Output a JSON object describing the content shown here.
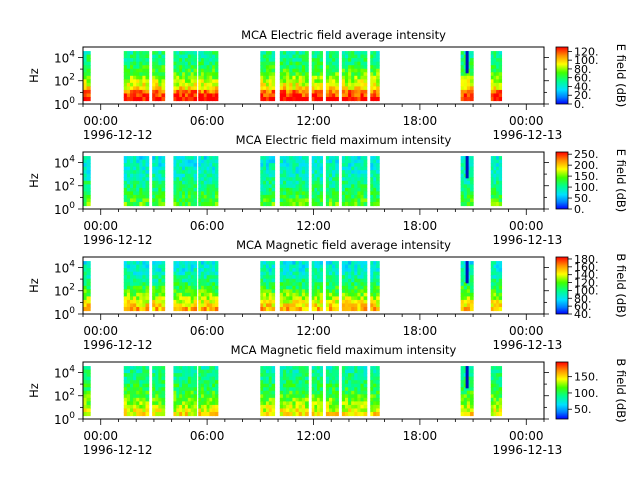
{
  "chart_data": [
    {
      "type": "heatmap",
      "title": "MCA  Electric field average intensity",
      "ylabel": "Hz",
      "yscale": "log",
      "yticks": [
        "10^0",
        "10^2",
        "10^4"
      ],
      "xticks": [
        "00:00",
        "06:00",
        "12:00",
        "18:00",
        "00:00"
      ],
      "date_start": "1996-12-12",
      "date_end": "1996-12-13",
      "colorbar": {
        "label": "E field (dB)",
        "ticks": [
          "0.",
          "20.",
          "40.",
          "60.",
          "80.",
          "100.",
          "120."
        ],
        "range": [
          0,
          130
        ]
      },
      "data_intervals_hours": [
        [
          0.0,
          0.4
        ],
        [
          2.3,
          3.7
        ],
        [
          3.9,
          4.6
        ],
        [
          5.1,
          6.4
        ],
        [
          6.5,
          7.6
        ],
        [
          10.0,
          10.8
        ],
        [
          11.1,
          12.7
        ],
        [
          12.9,
          13.5
        ],
        [
          13.7,
          14.4
        ],
        [
          14.6,
          16.0
        ],
        [
          16.2,
          16.7
        ],
        [
          21.3,
          22.0
        ],
        [
          23.0,
          23.6
        ]
      ],
      "colormap": "rainbow"
    },
    {
      "type": "heatmap",
      "title": "MCA  Electric field maximum intensity",
      "ylabel": "Hz",
      "yscale": "log",
      "yticks": [
        "10^0",
        "10^2",
        "10^4"
      ],
      "xticks": [
        "00:00",
        "06:00",
        "12:00",
        "18:00",
        "00:00"
      ],
      "date_start": "1996-12-12",
      "date_end": "1996-12-13",
      "colorbar": {
        "label": "E field (dB)",
        "ticks": [
          "0.",
          "50.",
          "100.",
          "150.",
          "200.",
          "250."
        ],
        "range": [
          0,
          260
        ]
      },
      "data_intervals_hours": [
        [
          0.0,
          0.4
        ],
        [
          2.3,
          3.7
        ],
        [
          3.9,
          4.6
        ],
        [
          5.1,
          6.4
        ],
        [
          6.5,
          7.6
        ],
        [
          10.0,
          10.8
        ],
        [
          11.1,
          12.7
        ],
        [
          12.9,
          13.5
        ],
        [
          13.7,
          14.4
        ],
        [
          14.6,
          16.0
        ],
        [
          16.2,
          16.7
        ],
        [
          21.3,
          22.0
        ],
        [
          23.0,
          23.6
        ]
      ],
      "colormap": "rainbow"
    },
    {
      "type": "heatmap",
      "title": "MCA  Magnetic field average intensity",
      "ylabel": "Hz",
      "yscale": "log",
      "yticks": [
        "10^0",
        "10^2",
        "10^4"
      ],
      "xticks": [
        "00:00",
        "06:00",
        "12:00",
        "18:00",
        "00:00"
      ],
      "date_start": "1996-12-12",
      "date_end": "1996-12-13",
      "colorbar": {
        "label": "B field (dB)",
        "ticks": [
          "40.",
          "60.",
          "80.",
          "100.",
          "120.",
          "140.",
          "160.",
          "180."
        ],
        "range": [
          40,
          185
        ]
      },
      "data_intervals_hours": [
        [
          0.0,
          0.4
        ],
        [
          2.3,
          3.7
        ],
        [
          3.9,
          4.6
        ],
        [
          5.1,
          6.4
        ],
        [
          6.5,
          7.6
        ],
        [
          10.0,
          10.8
        ],
        [
          11.1,
          12.7
        ],
        [
          12.9,
          13.5
        ],
        [
          13.7,
          14.4
        ],
        [
          14.6,
          16.0
        ],
        [
          16.2,
          16.7
        ],
        [
          21.3,
          22.0
        ],
        [
          23.0,
          23.6
        ]
      ],
      "colormap": "rainbow"
    },
    {
      "type": "heatmap",
      "title": "MCA  Magnetic field maximum intensity",
      "ylabel": "Hz",
      "yscale": "log",
      "yticks": [
        "10^0",
        "10^2",
        "10^4"
      ],
      "xticks": [
        "00:00",
        "06:00",
        "12:00",
        "18:00",
        "00:00"
      ],
      "date_start": "1996-12-12",
      "date_end": "1996-12-13",
      "colorbar": {
        "label": "B field (dB)",
        "ticks": [
          "50.",
          "100.",
          "150."
        ],
        "range": [
          20,
          195
        ]
      },
      "data_intervals_hours": [
        [
          0.0,
          0.4
        ],
        [
          2.3,
          3.7
        ],
        [
          3.9,
          4.6
        ],
        [
          5.1,
          6.4
        ],
        [
          6.5,
          7.6
        ],
        [
          10.0,
          10.8
        ],
        [
          11.1,
          12.7
        ],
        [
          12.9,
          13.5
        ],
        [
          13.7,
          14.4
        ],
        [
          14.6,
          16.0
        ],
        [
          16.2,
          16.7
        ],
        [
          21.3,
          22.0
        ],
        [
          23.0,
          23.6
        ]
      ],
      "colormap": "rainbow"
    }
  ]
}
